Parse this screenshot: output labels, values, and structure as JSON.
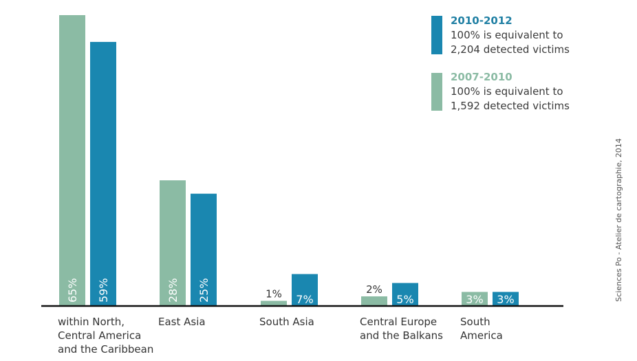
{
  "chart_data": {
    "type": "bar",
    "title": "",
    "xlabel": "",
    "ylabel": "",
    "ylim": [
      0,
      65
    ],
    "grid": false,
    "legend_position": "top-right",
    "categories": [
      "within North,\nCentral America\nand the Caribbean",
      "East Asia",
      "South Asia",
      "Central Europe\nand the Balkans",
      "South\nAmerica"
    ],
    "series": [
      {
        "name": "2007-2010",
        "color": "#8bbba4",
        "values": [
          65,
          28,
          1,
          2,
          3
        ],
        "labels": [
          "65%",
          "28%",
          "1%",
          "2%",
          "3%"
        ]
      },
      {
        "name": "2010-2012",
        "color": "#1a87b0",
        "values": [
          59,
          25,
          7,
          5,
          3
        ],
        "labels": [
          "59%",
          "25%",
          "7%",
          "5%",
          "3%"
        ]
      }
    ]
  },
  "legend": [
    {
      "name": "2010-2012",
      "color": "#1a87b0",
      "title_color": "#1f7fa3",
      "line1": "100% is equivalent to",
      "line2": "2,204 detected victims"
    },
    {
      "name": "2007-2010",
      "color": "#8bbba4",
      "title_color": "#8bbba4",
      "line1": "100% is equivalent to",
      "line2": "1,592 detected victims"
    }
  ],
  "credit": "Sciences Po - Atelier de cartographie, 2014"
}
